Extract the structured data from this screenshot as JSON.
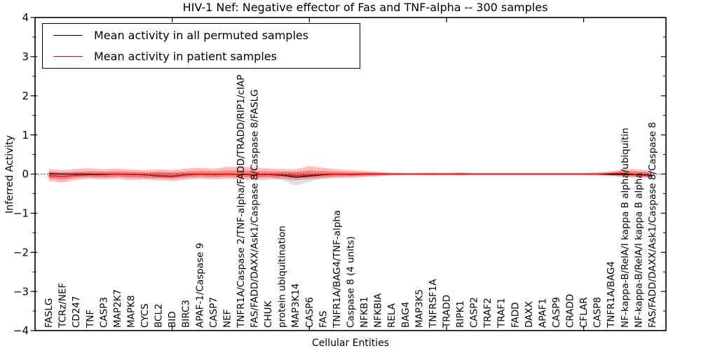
{
  "title": "HIV-1 Nef: Negative effector of Fas and TNF-alpha -- 300 samples",
  "legend": {
    "items": [
      {
        "label": "Mean activity in all permuted samples",
        "color": "#000000"
      },
      {
        "label": "Mean activity in patient samples",
        "color": "#ff0000"
      }
    ]
  },
  "axes": {
    "ylabel": "Inferred Activity",
    "xlabel": "Cellular Entities",
    "ylim": [
      -4,
      4
    ],
    "yticks": [
      -4,
      -3,
      -2,
      -1,
      0,
      1,
      2,
      3,
      4
    ],
    "yminor_step": 0.5,
    "xlim": [
      0,
      46
    ],
    "xticks_major": [
      10,
      20,
      30,
      40
    ]
  },
  "chart_data": {
    "type": "line",
    "title": "HIV-1 Nef: Negative effector of Fas and TNF-alpha -- 300 samples",
    "xlabel": "Cellular Entities",
    "ylabel": "Inferred Activity",
    "ylim": [
      -4,
      4
    ],
    "grid": false,
    "legend_position": "upper left",
    "zero_line": true,
    "categories": [
      "FASLG",
      "TCRz/NEF",
      "CD247",
      "TNF",
      "CASP3",
      "MAP2K7",
      "MAPK8",
      "CYCS",
      "BCL2",
      "BID",
      "BIRC3",
      "APAF-1/Caspase 9",
      "CASP7",
      "NEF",
      "TNFR1A/Caspase 2/TNF-alpha/FADD/TRADD/RIP1/cIAP",
      "FAS/FADD/DAXX/Ask1/Caspase 8/Caspase 8/FASLG",
      "CHUK",
      "protein ubiquitination",
      "MAP3K14",
      "CASP6",
      "FAS",
      "TNFR1A/BAG4/TNF-alpha",
      "Caspase 8 (4 units)",
      "NFKB1",
      "NFKBIA",
      "RELA",
      "BAG4",
      "MAP3K5",
      "TNFRSF1A",
      "TRADD",
      "RIPK1",
      "CASP2",
      "TRAF2",
      "TRAF1",
      "FADD",
      "DAXX",
      "APAF1",
      "CASP9",
      "CRADD",
      "CFLAR",
      "CASP8",
      "TNFR1A/BAG4",
      "NF-kappa-B/RelA/I kappa B alpha/ubiquitin",
      "NF-kappa-B/RelA/I kappa B alpha",
      "FAS/FADD/DAXX/Ask1/Caspase 8/Caspase 8"
    ],
    "series": [
      {
        "name": "Mean activity in all permuted samples",
        "color": "#000000",
        "values": [
          0.01,
          0.0,
          0.0,
          0.0,
          -0.01,
          0.0,
          -0.01,
          -0.02,
          -0.05,
          -0.06,
          -0.02,
          0.0,
          -0.01,
          0.0,
          -0.01,
          -0.02,
          -0.01,
          -0.03,
          -0.08,
          -0.05,
          -0.02,
          0.0,
          -0.01,
          0.0,
          0.0,
          0.0,
          0.0,
          0.0,
          0.0,
          0.0,
          0.0,
          0.0,
          0.0,
          0.0,
          0.0,
          0.0,
          0.0,
          0.0,
          0.0,
          0.0,
          0.0,
          -0.01,
          -0.01,
          -0.02,
          -0.03
        ]
      },
      {
        "name": "Mean activity in patient samples",
        "color": "#ff0000",
        "values": [
          -0.04,
          -0.06,
          -0.03,
          -0.02,
          -0.02,
          0.0,
          -0.01,
          -0.02,
          -0.04,
          -0.05,
          -0.02,
          0.0,
          -0.01,
          0.0,
          -0.01,
          -0.02,
          -0.01,
          -0.02,
          -0.04,
          -0.03,
          -0.01,
          0.0,
          -0.01,
          0.0,
          0.0,
          0.0,
          0.0,
          0.0,
          0.0,
          0.0,
          0.0,
          0.0,
          0.0,
          0.0,
          0.0,
          0.0,
          0.0,
          0.0,
          0.0,
          0.0,
          0.0,
          0.01,
          0.02,
          -0.02,
          -0.05
        ]
      }
    ],
    "bands": [
      {
        "name": "permuted-samples-spread",
        "color": "#888888",
        "opacity": 0.25,
        "upper": [
          0.06,
          0.06,
          0.05,
          0.05,
          0.06,
          0.05,
          0.05,
          0.05,
          0.06,
          0.06,
          0.05,
          0.05,
          0.05,
          0.05,
          0.05,
          0.05,
          0.05,
          0.06,
          0.07,
          0.06,
          0.05,
          0.04,
          0.04,
          0.04,
          0.04,
          0.04,
          0.04,
          0.04,
          0.04,
          0.04,
          0.05,
          0.04,
          0.04,
          0.04,
          0.04,
          0.04,
          0.04,
          0.04,
          0.04,
          0.04,
          0.05,
          0.06,
          0.08,
          0.07,
          0.06
        ],
        "lower": [
          -0.1,
          -0.12,
          -0.08,
          -0.07,
          -0.09,
          -0.07,
          -0.08,
          -0.12,
          -0.11,
          -0.11,
          -0.08,
          -0.06,
          -0.07,
          -0.06,
          -0.07,
          -0.08,
          -0.07,
          -0.15,
          -0.3,
          -0.2,
          -0.1,
          -0.06,
          -0.05,
          -0.05,
          -0.04,
          -0.04,
          -0.04,
          -0.04,
          -0.04,
          -0.04,
          -0.05,
          -0.04,
          -0.04,
          -0.04,
          -0.04,
          -0.04,
          -0.04,
          -0.04,
          -0.04,
          -0.04,
          -0.05,
          -0.06,
          -0.08,
          -0.08,
          -0.1
        ]
      },
      {
        "name": "patient-samples-spread",
        "color": "#ff0000",
        "opacity": 0.26,
        "upper": [
          0.13,
          0.1,
          0.13,
          0.15,
          0.12,
          0.14,
          0.12,
          0.1,
          0.12,
          0.1,
          0.14,
          0.16,
          0.14,
          0.18,
          0.19,
          0.17,
          0.14,
          0.13,
          0.12,
          0.2,
          0.16,
          0.12,
          0.1,
          0.08,
          0.06,
          0.03,
          0.02,
          0.02,
          0.03,
          0.02,
          0.04,
          0.02,
          0.02,
          0.02,
          0.02,
          0.02,
          0.02,
          0.02,
          0.02,
          0.02,
          0.03,
          0.06,
          0.13,
          0.12,
          0.08
        ],
        "lower": [
          -0.18,
          -0.22,
          -0.15,
          -0.12,
          -0.14,
          -0.12,
          -0.16,
          -0.14,
          -0.16,
          -0.18,
          -0.14,
          -0.12,
          -0.14,
          -0.12,
          -0.14,
          -0.16,
          -0.14,
          -0.13,
          -0.16,
          -0.14,
          -0.12,
          -0.1,
          -0.1,
          -0.08,
          -0.06,
          -0.03,
          -0.02,
          -0.02,
          -0.03,
          -0.02,
          -0.03,
          -0.02,
          -0.02,
          -0.02,
          -0.02,
          -0.02,
          -0.02,
          -0.02,
          -0.02,
          -0.02,
          -0.03,
          -0.04,
          -0.08,
          -0.09,
          -0.1
        ]
      }
    ]
  }
}
